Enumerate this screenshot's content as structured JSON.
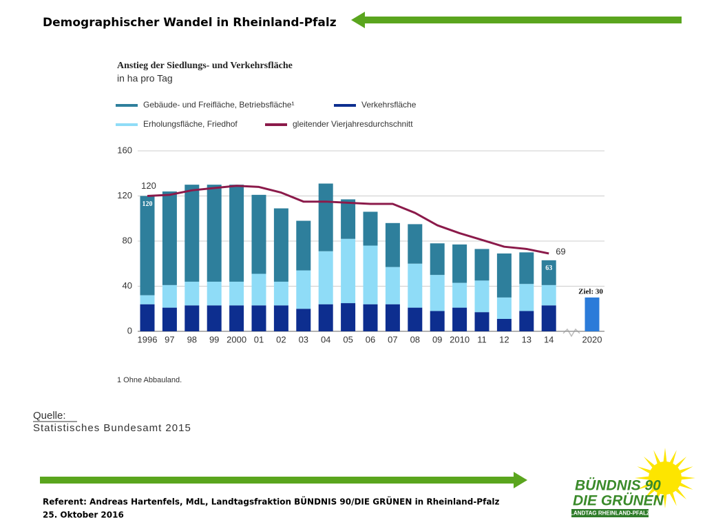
{
  "header": {
    "title": "Demographischer Wandel in Rheinland-Pfalz"
  },
  "chart_data": {
    "type": "bar",
    "stacked": true,
    "title": "Anstieg der Siedlungs- und Verkehrsfläche",
    "subtitle": "in ha pro Tag",
    "categories": [
      "1996",
      "97",
      "98",
      "99",
      "2000",
      "01",
      "02",
      "03",
      "04",
      "05",
      "06",
      "07",
      "08",
      "09",
      "2010",
      "11",
      "12",
      "13",
      "14"
    ],
    "series": [
      {
        "name": "Verkehrsfläche",
        "color": "#0d2e8f",
        "values": [
          24,
          21,
          23,
          23,
          23,
          23,
          23,
          20,
          24,
          25,
          24,
          24,
          21,
          18,
          21,
          17,
          11,
          18,
          23
        ]
      },
      {
        "name": "Erholungsfläche, Friedhof",
        "color": "#8fdcf7",
        "values": [
          8,
          20,
          21,
          21,
          21,
          28,
          21,
          34,
          47,
          57,
          52,
          33,
          39,
          32,
          22,
          28,
          19,
          24,
          18
        ]
      },
      {
        "name": "Gebäude- und Freifläche, Betriebsfläche¹",
        "color": "#2e7f9c",
        "values": [
          88,
          83,
          86,
          86,
          86,
          70,
          65,
          44,
          60,
          35,
          30,
          39,
          35,
          28,
          34,
          28,
          39,
          28,
          22
        ]
      },
      {
        "name": "gleitender Vierjahresdurchschnitt",
        "type": "line",
        "color": "#8b1a4a",
        "values": [
          120,
          121,
          125,
          127,
          129,
          128,
          123,
          115,
          115,
          114,
          113,
          113,
          105,
          94,
          87,
          81,
          75,
          73,
          69
        ]
      }
    ],
    "line_labels": [
      0,
      18
    ],
    "total_labels": [
      {
        "category": "1996",
        "value": 120
      },
      {
        "category": "14",
        "value": 63
      }
    ],
    "target": {
      "category": "2020",
      "value": 30,
      "label": "Ziel: 30",
      "color": "#2b7bd9"
    },
    "ylim": [
      0,
      160
    ],
    "yticks": [
      0,
      40,
      80,
      120,
      160
    ],
    "grid": true,
    "footnote": "1 Ohne Abbauland."
  },
  "source": {
    "label": "Quelle:",
    "text": "Statistisches Bundesamt 2015"
  },
  "footer": {
    "line1": "Referent:  Andreas Hartenfels, MdL, Landtagsfraktion BÜNDNIS 90/DIE GRÜNEN in Rheinland-Pfalz",
    "line2": "25. Oktober 2016"
  },
  "logo": {
    "line1": "BÜNDNIS 90",
    "line2": "DIE GRÜNEN",
    "line3": "LANDTAG RHEINLAND-PFALZ"
  }
}
